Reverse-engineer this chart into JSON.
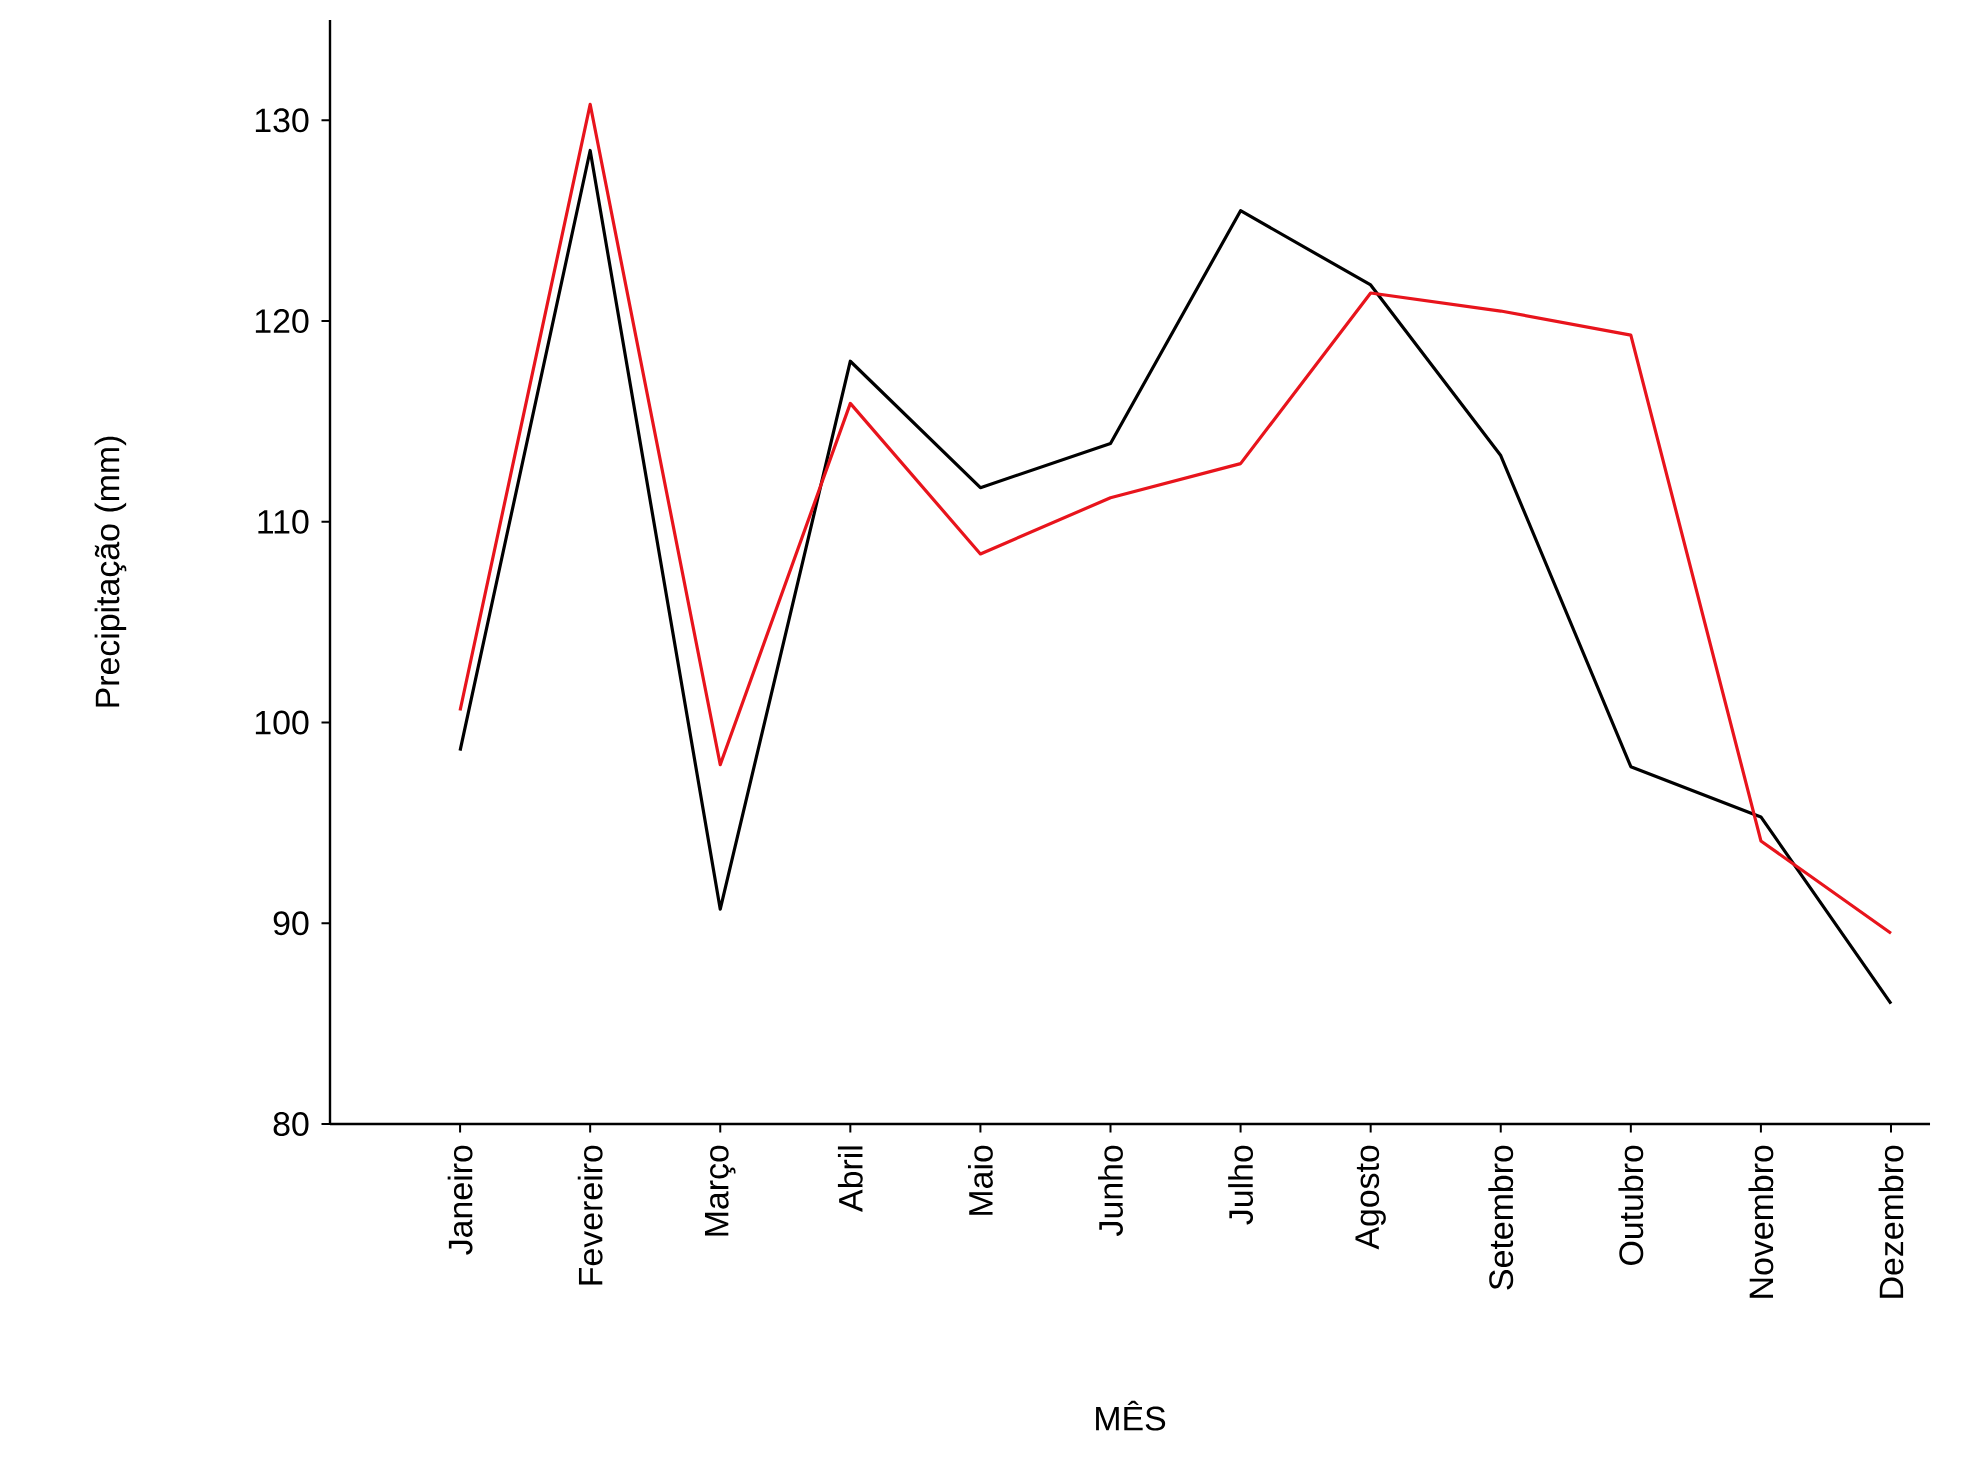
{
  "chart_data": {
    "type": "line",
    "xlabel": "MÊS",
    "ylabel": "Precipitação (mm)",
    "categories": [
      "Janeiro",
      "Fevereiro",
      "Março",
      "Abril",
      "Maio",
      "Junho",
      "Julho",
      "Agosto",
      "Setembro",
      "Outubro",
      "Novembro",
      "Dezembro"
    ],
    "ylim": [
      80,
      135
    ],
    "yticks": [
      80,
      90,
      100,
      110,
      120,
      130
    ],
    "series": [
      {
        "color": "#000000",
        "values": [
          98.6,
          128.5,
          90.7,
          118.0,
          111.7,
          113.9,
          125.5,
          121.8,
          113.3,
          97.8,
          95.3,
          86.0
        ]
      },
      {
        "color": "#e8141c",
        "values": [
          100.6,
          130.8,
          97.9,
          115.9,
          108.4,
          111.2,
          112.9,
          121.4,
          120.5,
          119.3,
          94.1,
          89.5
        ]
      }
    ]
  }
}
